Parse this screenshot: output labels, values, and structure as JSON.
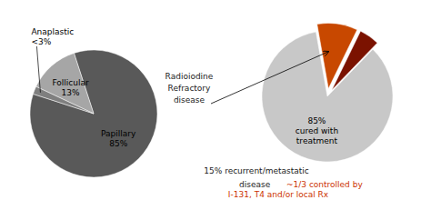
{
  "chart_data": [
    {
      "type": "pie",
      "categories": [
        "Papillary",
        "Follicular",
        "Anaplastic"
      ],
      "values": [
        85,
        13,
        2
      ],
      "value_labels": [
        "85%",
        "13%",
        "<3%"
      ],
      "colors": [
        "#595959",
        "#a6a6a6",
        "#7f7f7f"
      ]
    },
    {
      "type": "pie",
      "values": [
        85,
        5,
        10
      ],
      "value_labels": [
        "85%\ncured with\ntreatment",
        null,
        null
      ],
      "colors": [
        "#c8c8c8",
        "#7b1200",
        "#c84800"
      ],
      "annotations": [
        {
          "text": "Radioiodine\nRefractory\ndisease",
          "color": "#1a1a1a"
        },
        {
          "text": "15% recurrent/metastatic",
          "color": "#1a1a1a"
        },
        {
          "text": "disease",
          "color": "#1a1a1a"
        },
        {
          "text": "~1/3 controlled by",
          "color": "#cc3300"
        },
        {
          "text": "I-131, T4 and/or local Rx",
          "color": "#cc3300"
        }
      ]
    }
  ]
}
